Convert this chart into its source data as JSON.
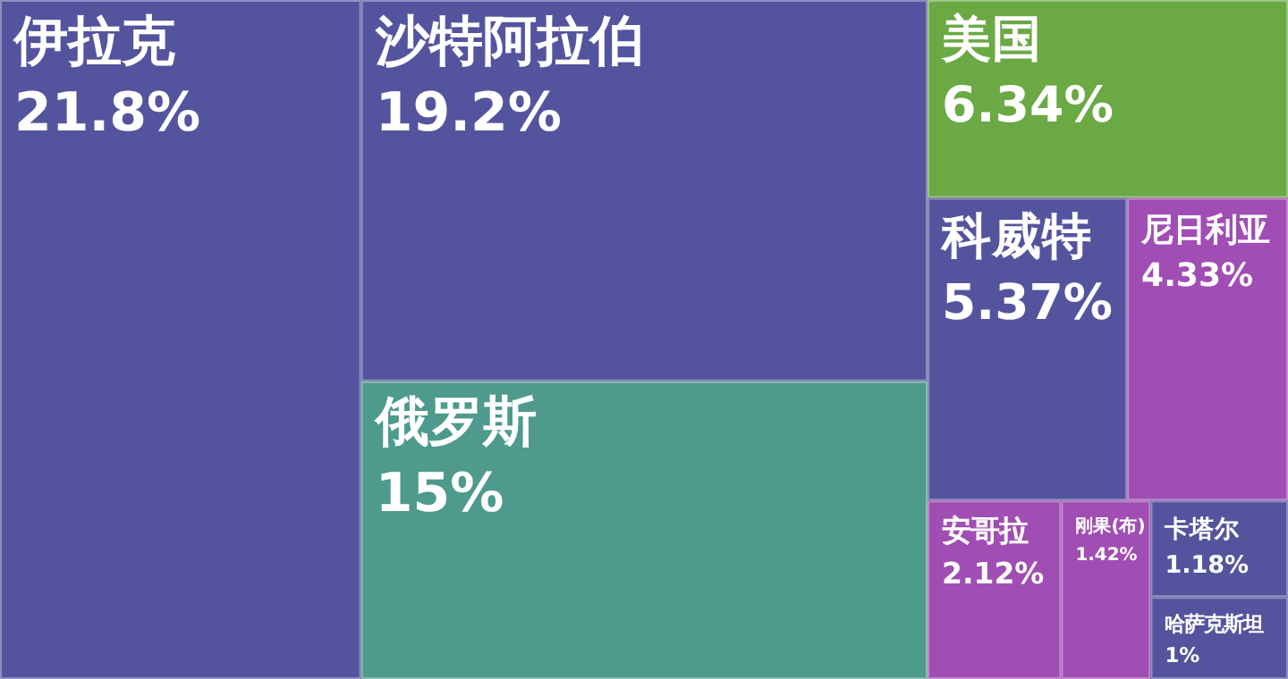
{
  "chart_data": {
    "type": "other",
    "categories": [
      "伊拉克",
      "沙特阿拉伯",
      "俄罗斯",
      "美国",
      "科威特",
      "尼日利亚",
      "安哥拉",
      "刚果(布)",
      "卡塔尔",
      "哈萨克斯坦"
    ],
    "values": [
      21.8,
      19.2,
      15,
      6.34,
      5.37,
      4.33,
      2.12,
      1.42,
      1.18,
      1
    ],
    "value_labels": [
      "21.8%",
      "19.2%",
      "15%",
      "6.34%",
      "5.37%",
      "4.33%",
      "2.12%",
      "1.42%",
      "1.18%",
      "1%"
    ],
    "colors": [
      "#54549e",
      "#54549e",
      "#4e9a8c",
      "#6aa944",
      "#54549e",
      "#a04eb4",
      "#a04eb4",
      "#a04eb4",
      "#54549e",
      "#54549e"
    ]
  }
}
